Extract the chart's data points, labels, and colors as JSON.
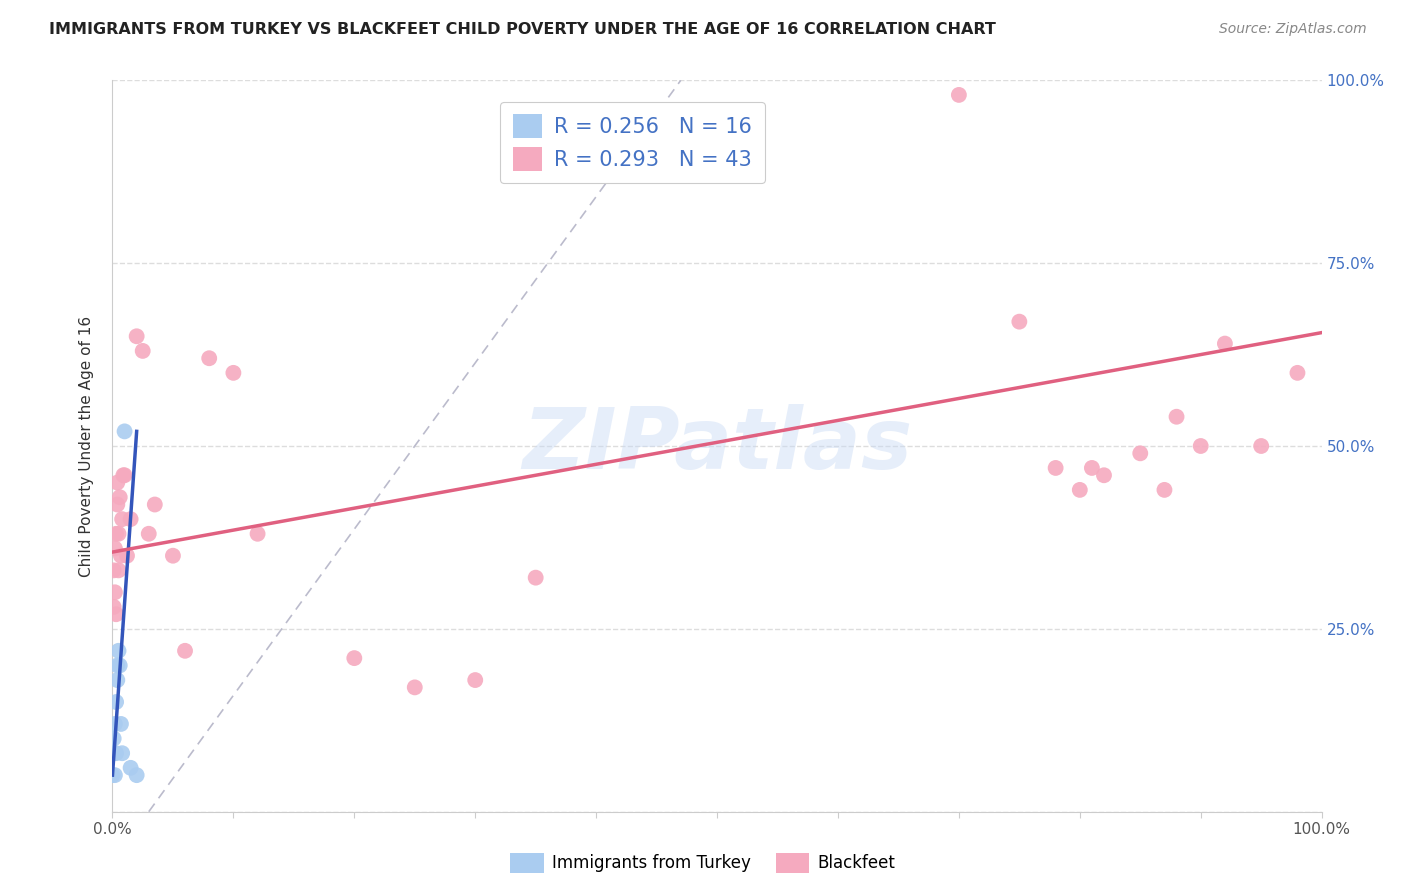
{
  "title": "IMMIGRANTS FROM TURKEY VS BLACKFEET CHILD POVERTY UNDER THE AGE OF 16 CORRELATION CHART",
  "source": "Source: ZipAtlas.com",
  "ylabel": "Child Poverty Under the Age of 16",
  "xlim": [
    0,
    1.0
  ],
  "ylim": [
    0,
    1.0
  ],
  "turkey_color": "#aaccf0",
  "blackfeet_color": "#f5aabf",
  "turkey_line_color": "#3355bb",
  "blackfeet_line_color": "#e06080",
  "diag_color": "#bbbbcc",
  "turkey_R": 0.256,
  "turkey_N": 16,
  "blackfeet_R": 0.293,
  "blackfeet_N": 43,
  "legend_label_turkey": "Immigrants from Turkey",
  "legend_label_blackfeet": "Blackfeet",
  "watermark": "ZIPatlas",
  "background_color": "#ffffff",
  "grid_color": "#dddddd",
  "accent_color": "#4472c4",
  "turkey_points_x": [
    0.0,
    0.001,
    0.001,
    0.002,
    0.002,
    0.003,
    0.003,
    0.004,
    0.004,
    0.005,
    0.006,
    0.007,
    0.008,
    0.01,
    0.015,
    0.02
  ],
  "turkey_points_y": [
    0.05,
    0.08,
    0.1,
    0.05,
    0.12,
    0.08,
    0.15,
    0.18,
    0.2,
    0.22,
    0.2,
    0.12,
    0.08,
    0.52,
    0.06,
    0.05
  ],
  "blackfeet_points_x": [
    0.001,
    0.001,
    0.002,
    0.002,
    0.003,
    0.003,
    0.004,
    0.004,
    0.005,
    0.005,
    0.006,
    0.007,
    0.008,
    0.009,
    0.01,
    0.012,
    0.015,
    0.02,
    0.025,
    0.03,
    0.035,
    0.05,
    0.06,
    0.08,
    0.1,
    0.12,
    0.2,
    0.25,
    0.3,
    0.35,
    0.7,
    0.75,
    0.78,
    0.8,
    0.81,
    0.82,
    0.85,
    0.87,
    0.88,
    0.9,
    0.92,
    0.95,
    0.98
  ],
  "blackfeet_points_y": [
    0.28,
    0.33,
    0.3,
    0.36,
    0.27,
    0.38,
    0.42,
    0.45,
    0.33,
    0.38,
    0.43,
    0.35,
    0.4,
    0.46,
    0.46,
    0.35,
    0.4,
    0.65,
    0.63,
    0.38,
    0.42,
    0.35,
    0.22,
    0.62,
    0.6,
    0.38,
    0.21,
    0.17,
    0.18,
    0.32,
    0.98,
    0.67,
    0.47,
    0.44,
    0.47,
    0.46,
    0.49,
    0.44,
    0.54,
    0.5,
    0.64,
    0.5,
    0.6
  ],
  "blackfeet_line_x0": 0.0,
  "blackfeet_line_x1": 1.0,
  "blackfeet_line_y0": 0.355,
  "blackfeet_line_y1": 0.655,
  "turkey_line_x0": 0.0,
  "turkey_line_x1": 0.02,
  "turkey_line_y0": 0.05,
  "turkey_line_y1": 0.52
}
